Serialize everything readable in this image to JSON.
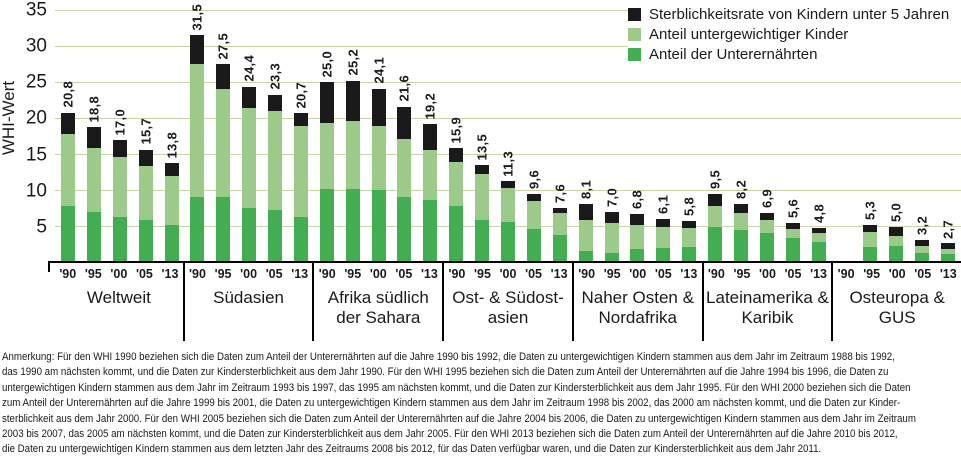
{
  "y_axis": {
    "title": "WHI-Wert",
    "ticks": [
      35,
      30,
      25,
      20,
      15,
      10,
      5
    ]
  },
  "years": [
    "'90",
    "'95",
    "'00",
    "'05",
    "'13"
  ],
  "legend": {
    "items": [
      {
        "label": "Sterblichkeitsrate von Kindern unter 5 Jahren",
        "color": "#1a1a1a"
      },
      {
        "label": "Anteil untergewichtiger Kinder",
        "color": "#9bca8a"
      },
      {
        "label": "Anteil der Unterernährten",
        "color": "#43ad52"
      }
    ]
  },
  "colors": {
    "undernourished": "#43ad52",
    "underweight": "#9bca8a",
    "mortality": "#1a1a1a",
    "gridline": "#c9d3a7",
    "axis": "#000000"
  },
  "chart_data": {
    "type": "bar",
    "subtype": "stacked",
    "title": "",
    "xlabel": "",
    "ylabel": "WHI-Wert",
    "ylim": [
      0,
      35
    ],
    "grid": true,
    "legend_position": "top-right",
    "segment_order": [
      "Anteil der Unterernährten",
      "Anteil untergewichtiger Kinder",
      "Sterblichkeitsrate von Kindern unter 5 Jahren"
    ],
    "categories": [
      "'90",
      "'95",
      "'00",
      "'05",
      "'13"
    ],
    "regions": [
      {
        "name": "Weltweit",
        "name_lines": [
          "Weltweit"
        ],
        "bars": [
          {
            "year": "'90",
            "total": 20.8,
            "label": "20,8",
            "segments": [
              7.9,
              10.0,
              2.9
            ]
          },
          {
            "year": "'95",
            "total": 18.8,
            "label": "18,8",
            "segments": [
              7.1,
              8.8,
              2.9
            ]
          },
          {
            "year": "'00",
            "total": 17.0,
            "label": "17,0",
            "segments": [
              6.4,
              8.2,
              2.4
            ]
          },
          {
            "year": "'05",
            "total": 15.7,
            "label": "15,7",
            "segments": [
              6.0,
              7.4,
              2.3
            ]
          },
          {
            "year": "'13",
            "total": 13.8,
            "label": "13,8",
            "segments": [
              5.2,
              6.9,
              1.7
            ]
          }
        ]
      },
      {
        "name": "Südasien",
        "name_lines": [
          "Südasien"
        ],
        "bars": [
          {
            "year": "'90",
            "total": 31.5,
            "label": "31,5",
            "segments": [
              9.2,
              18.4,
              3.9
            ]
          },
          {
            "year": "'95",
            "total": 27.5,
            "label": "27,5",
            "segments": [
              9.1,
              15.0,
              3.4
            ]
          },
          {
            "year": "'00",
            "total": 24.4,
            "label": "24,4",
            "segments": [
              7.6,
              13.9,
              2.9
            ]
          },
          {
            "year": "'05",
            "total": 23.3,
            "label": "23,3",
            "segments": [
              7.3,
              13.7,
              2.3
            ]
          },
          {
            "year": "'13",
            "total": 20.7,
            "label": "20,7",
            "segments": [
              6.3,
              12.6,
              1.8
            ]
          }
        ]
      },
      {
        "name": "Afrika südlich der Sahara",
        "name_lines": [
          "Afrika südlich",
          "der Sahara"
        ],
        "bars": [
          {
            "year": "'90",
            "total": 25.0,
            "label": "25,0",
            "segments": [
              10.3,
              9.0,
              5.7
            ]
          },
          {
            "year": "'95",
            "total": 25.2,
            "label": "25,2",
            "segments": [
              10.2,
              9.5,
              5.5
            ]
          },
          {
            "year": "'00",
            "total": 24.1,
            "label": "24,1",
            "segments": [
              10.1,
              8.8,
              5.2
            ]
          },
          {
            "year": "'05",
            "total": 21.6,
            "label": "21,6",
            "segments": [
              9.1,
              8.1,
              4.4
            ]
          },
          {
            "year": "'13",
            "total": 19.2,
            "label": "19,2",
            "segments": [
              8.7,
              6.9,
              3.6
            ]
          }
        ]
      },
      {
        "name": "Ost- & Südostasien",
        "name_lines": [
          "Ost- & Südost-",
          "asien"
        ],
        "bars": [
          {
            "year": "'90",
            "total": 15.9,
            "label": "15,9",
            "segments": [
              7.9,
              6.1,
              1.9
            ]
          },
          {
            "year": "'95",
            "total": 13.5,
            "label": "13,5",
            "segments": [
              6.0,
              6.3,
              1.2
            ]
          },
          {
            "year": "'00",
            "total": 11.3,
            "label": "11,3",
            "segments": [
              5.7,
              4.7,
              0.9
            ]
          },
          {
            "year": "'05",
            "total": 9.6,
            "label": "9,6",
            "segments": [
              4.7,
              3.9,
              1.0
            ]
          },
          {
            "year": "'13",
            "total": 7.6,
            "label": "7,6",
            "segments": [
              3.9,
              3.0,
              0.7
            ]
          }
        ]
      },
      {
        "name": "Naher Osten & Nordafrika",
        "name_lines": [
          "Naher Osten &",
          "Nordafrika"
        ],
        "bars": [
          {
            "year": "'90",
            "total": 8.1,
            "label": "8,1",
            "segments": [
              1.6,
              4.3,
              2.2
            ]
          },
          {
            "year": "'95",
            "total": 7.0,
            "label": "7,0",
            "segments": [
              1.4,
              4.1,
              1.5
            ]
          },
          {
            "year": "'00",
            "total": 6.8,
            "label": "6,8",
            "segments": [
              2.0,
              3.3,
              1.5
            ]
          },
          {
            "year": "'05",
            "total": 6.1,
            "label": "6,1",
            "segments": [
              2.1,
              2.9,
              1.1
            ]
          },
          {
            "year": "'13",
            "total": 5.8,
            "label": "5,8",
            "segments": [
              2.2,
              2.7,
              0.9
            ]
          }
        ]
      },
      {
        "name": "Lateinamerika & Karibik",
        "name_lines": [
          "Lateinamerika &",
          "Karibik"
        ],
        "bars": [
          {
            "year": "'90",
            "total": 9.5,
            "label": "9,5",
            "segments": [
              5.0,
              2.9,
              1.6
            ]
          },
          {
            "year": "'95",
            "total": 8.2,
            "label": "8,2",
            "segments": [
              4.6,
              2.3,
              1.3
            ]
          },
          {
            "year": "'00",
            "total": 6.9,
            "label": "6,9",
            "segments": [
              4.1,
              1.8,
              1.0
            ]
          },
          {
            "year": "'05",
            "total": 5.6,
            "label": "5,6",
            "segments": [
              3.4,
              1.3,
              0.9
            ]
          },
          {
            "year": "'13",
            "total": 4.8,
            "label": "4,8",
            "segments": [
              2.9,
              1.2,
              0.7
            ]
          }
        ]
      },
      {
        "name": "Osteuropa & GUS",
        "name_lines": [
          "Osteuropa & GUS"
        ],
        "bars": [
          {
            "year": "'90",
            "total": null,
            "label": "",
            "segments": null
          },
          {
            "year": "'95",
            "total": 5.3,
            "label": "5,3",
            "segments": [
              2.2,
              2.1,
              1.0
            ]
          },
          {
            "year": "'00",
            "total": 5.0,
            "label": "5,0",
            "segments": [
              2.3,
              1.5,
              1.2
            ]
          },
          {
            "year": "'05",
            "total": 3.2,
            "label": "3,2",
            "segments": [
              1.4,
              1.0,
              0.8
            ]
          },
          {
            "year": "'13",
            "total": 2.7,
            "label": "2,7",
            "segments": [
              1.2,
              0.8,
              0.7
            ]
          }
        ]
      }
    ]
  },
  "note_lines": [
    "Anmerkung: Für den WHI 1990 beziehen sich die Daten zum Anteil der Unterernährten auf die Jahre 1990 bis 1992, die Daten zu untergewichtigen Kindern stammen aus dem Jahr im Zeitraum 1988 bis 1992,",
    "das 1990 am nächsten kommt, und die Daten zur Kindersterblichkeit aus dem Jahr 1990. Für den WHI 1995 beziehen sich die Daten zum Anteil der Unterernährten auf die Jahre 1994 bis 1996, die Daten zu",
    "untergewichtigen Kindern stammen aus dem Jahr im Zeitraum 1993 bis 1997, das 1995 am nächsten kommt, und die Daten zur Kindersterblichkeit aus dem Jahr 1995. Für den WHI 2000 beziehen sich die Daten",
    "zum Anteil der Unterernährten auf die Jahre 1999 bis 2001, die Daten zu untergewichtigen Kindern stammen aus dem Jahr im Zeitraum 1998 bis 2002, das 2000 am nächsten kommt, und die Daten zur Kinder-",
    "sterblichkeit aus dem Jahr 2000. Für den WHI 2005 beziehen sich die Daten zum Anteil der Unterernährten auf die Jahre 2004 bis 2006, die Daten zu untergewichtigen Kindern stammen aus dem Jahr im Zeitraum",
    "2003 bis 2007, das 2005 am nächsten kommt, und die Daten zur Kindersterblichkeit aus dem Jahr 2005. Für den WHI 2013 beziehen sich die Daten zum Anteil der Unterernährten auf die Jahre 2010 bis 2012,",
    "die Daten zu untergewichtigen Kindern stammen aus dem letzten Jahr des Zeitraums 2008 bis 2012, für das Daten verfügbar waren, und die Daten zur Kindersterblichkeit aus dem Jahr 2011."
  ]
}
